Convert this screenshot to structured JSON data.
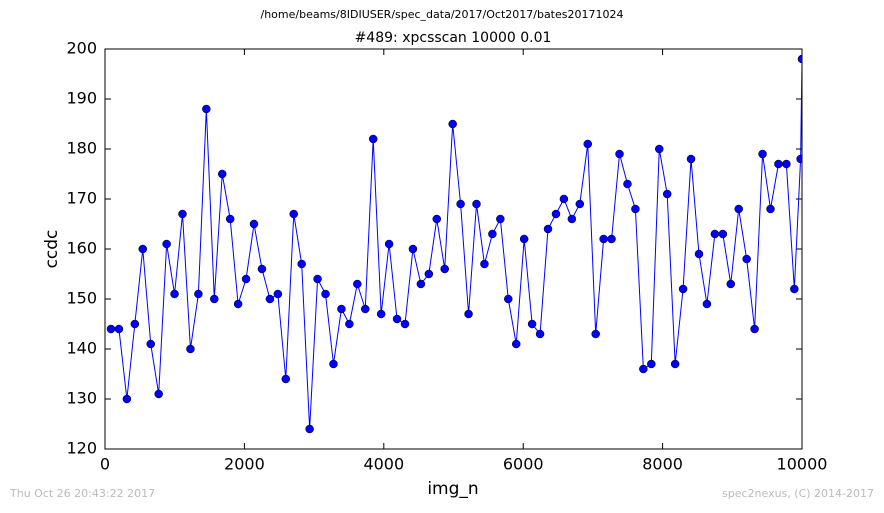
{
  "chart_data": {
    "type": "line",
    "suptitle": "/home/beams/8IDIUSER/spec_data/2017/Oct2017/bates20171024",
    "title": "#489: xpcsscan 10000 0.01",
    "x_label": "img_n",
    "y_label": "ccdc",
    "footer_left": "Thu Oct 26 20:43:22 2017",
    "footer_right": "spec2nexus, (C) 2014-2017",
    "xlim": [
      0,
      10000
    ],
    "xticks": [
      0,
      2000,
      4000,
      6000,
      8000,
      10000
    ],
    "ylim": [
      120,
      200
    ],
    "yticks": [
      120,
      130,
      140,
      150,
      160,
      170,
      180,
      190,
      200
    ],
    "x": [
      86,
      200,
      314,
      428,
      542,
      656,
      770,
      884,
      998,
      1112,
      1226,
      1340,
      1454,
      1568,
      1682,
      1796,
      1910,
      2024,
      2138,
      2252,
      2366,
      2480,
      2594,
      2708,
      2822,
      2936,
      3050,
      3164,
      3278,
      3392,
      3506,
      3620,
      3734,
      3848,
      3962,
      4076,
      4190,
      4304,
      4418,
      4532,
      4646,
      4760,
      4874,
      4988,
      5102,
      5216,
      5330,
      5444,
      5558,
      5672,
      5786,
      5900,
      6014,
      6128,
      6242,
      6356,
      6470,
      6584,
      6698,
      6812,
      6926,
      7040,
      7154,
      7268,
      7382,
      7496,
      7610,
      7724,
      7838,
      7952,
      8066,
      8180,
      8294,
      8408,
      8522,
      8636,
      8750,
      8864,
      8978,
      9092,
      9206,
      9320,
      9434,
      9548,
      9662,
      9776,
      9890,
      9980,
      10000
    ],
    "series": [
      {
        "name": "ccdc",
        "color": "#0000ff",
        "values": [
          144,
          144,
          130,
          145,
          160,
          141,
          131,
          161,
          151,
          167,
          140,
          151,
          188,
          150,
          175,
          166,
          149,
          154,
          165,
          156,
          150,
          151,
          134,
          167,
          157,
          124,
          154,
          151,
          137,
          148,
          145,
          153,
          148,
          182,
          147,
          161,
          146,
          145,
          160,
          153,
          155,
          166,
          156,
          185,
          169,
          147,
          169,
          157,
          163,
          166,
          150,
          141,
          162,
          145,
          143,
          164,
          167,
          170,
          166,
          169,
          181,
          143,
          162,
          162,
          179,
          173,
          168,
          136,
          137,
          180,
          171,
          137,
          152,
          178,
          159,
          149,
          163,
          163,
          153,
          168,
          158,
          144,
          179,
          168,
          177,
          177,
          152,
          178,
          198
        ]
      }
    ]
  }
}
